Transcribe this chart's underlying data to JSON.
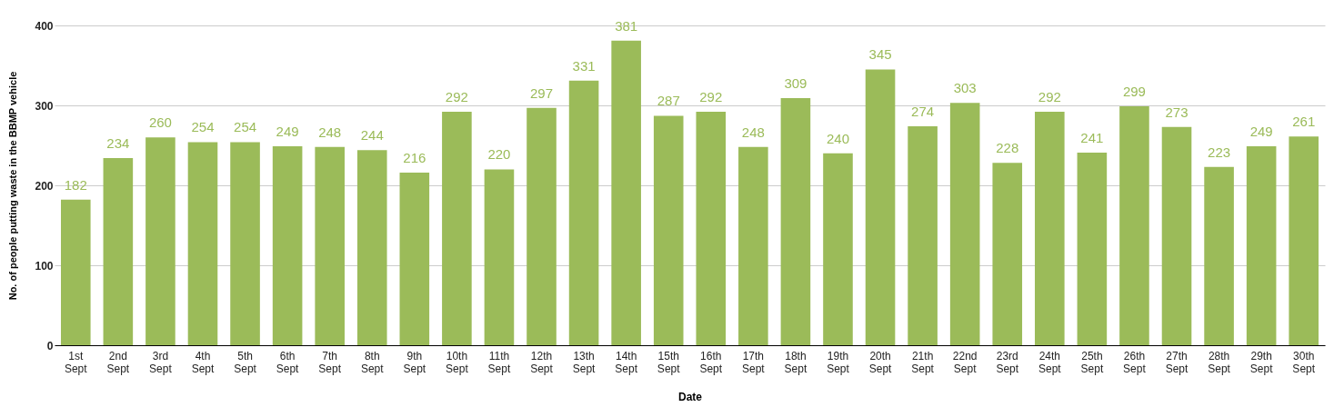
{
  "chart_data": {
    "type": "bar",
    "xlabel": "Date",
    "ylabel": "No. of people putting waste in the BBMP vehicle",
    "categories": [
      "1st Sept",
      "2nd Sept",
      "3rd Sept",
      "4th Sept",
      "5th Sept",
      "6th Sept",
      "7th Sept",
      "8th Sept",
      "9th Sept",
      "10th Sept",
      "11th Sept",
      "12th Sept",
      "13th Sept",
      "14th Sept",
      "15th Sept",
      "16th Sept",
      "17th Sept",
      "18th Sept",
      "19th Sept",
      "20th Sept",
      "21th Sept",
      "22nd Sept",
      "23rd Sept",
      "24th Sept",
      "25th Sept",
      "26th Sept",
      "27th Sept",
      "28th Sept",
      "29th Sept",
      "30th Sept"
    ],
    "values": [
      182,
      234,
      260,
      254,
      254,
      249,
      248,
      244,
      216,
      292,
      220,
      297,
      331,
      381,
      287,
      292,
      248,
      309,
      240,
      345,
      274,
      303,
      228,
      292,
      241,
      299,
      273,
      223,
      249,
      261
    ],
    "color": "#9bbb59",
    "ylim": [
      0,
      400
    ],
    "yticks": [
      0,
      100,
      200,
      300,
      400
    ],
    "grid": "y",
    "data_labels": true
  }
}
